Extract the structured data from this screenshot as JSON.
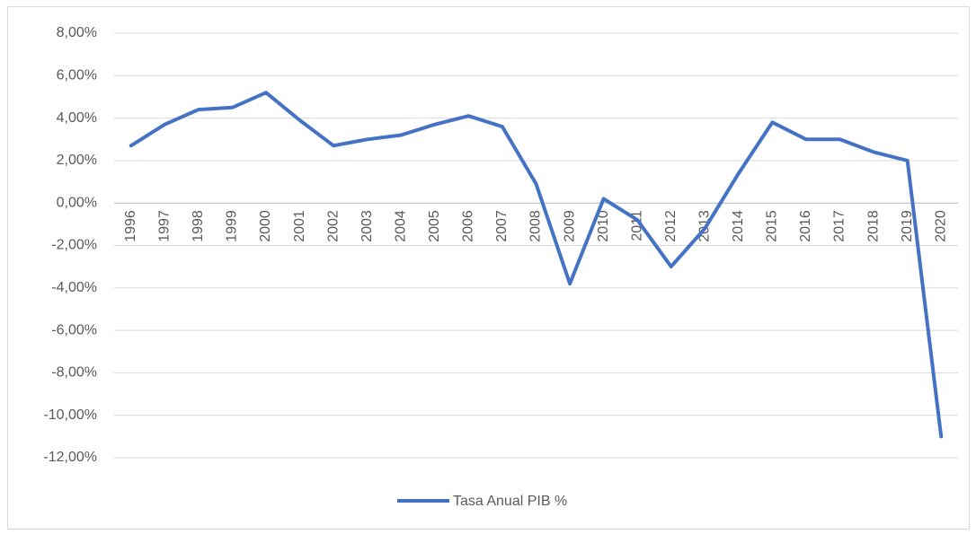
{
  "chart_data": {
    "type": "line",
    "categories": [
      "1996",
      "1997",
      "1998",
      "1999",
      "2000",
      "2001",
      "2002",
      "2003",
      "2004",
      "2005",
      "2006",
      "2007",
      "2008",
      "2009",
      "2010",
      "2011",
      "2012",
      "2013",
      "2014",
      "2015",
      "2016",
      "2017",
      "2018",
      "2019",
      "2020"
    ],
    "series": [
      {
        "name": "Tasa Anual PIB %",
        "color": "#4472c4",
        "values": [
          2.7,
          3.7,
          4.4,
          4.5,
          5.2,
          3.9,
          2.7,
          3.0,
          3.2,
          3.7,
          4.1,
          3.6,
          0.9,
          -3.8,
          0.2,
          -0.8,
          -3.0,
          -1.2,
          1.4,
          3.8,
          3.0,
          3.0,
          2.4,
          2.0,
          -11.0
        ]
      }
    ],
    "ylim": [
      -12,
      8
    ],
    "yticks": [
      {
        "value": 8,
        "label": "8,00%"
      },
      {
        "value": 6,
        "label": "6,00%"
      },
      {
        "value": 4,
        "label": "4,00%"
      },
      {
        "value": 2,
        "label": "2,00%"
      },
      {
        "value": 0,
        "label": "0,00%"
      },
      {
        "value": -2,
        "label": "-2,00%"
      },
      {
        "value": -4,
        "label": "-4,00%"
      },
      {
        "value": -6,
        "label": "-6,00%"
      },
      {
        "value": -8,
        "label": "-8,00%"
      },
      {
        "value": -10,
        "label": "-10,00%"
      },
      {
        "value": -12,
        "label": "-12,00%"
      }
    ],
    "grid": true,
    "legend": "bottom"
  }
}
